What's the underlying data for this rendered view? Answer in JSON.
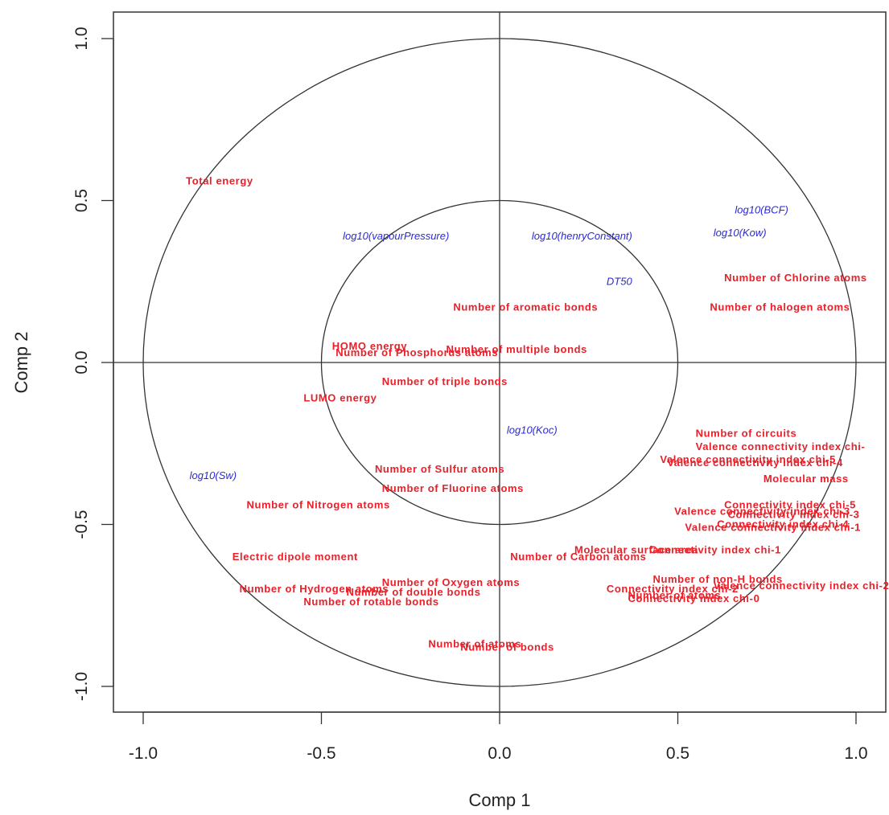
{
  "chart_data": {
    "type": "scatter",
    "xlabel": "Comp 1",
    "ylabel": "Comp 2",
    "xlim": [
      -1.08,
      1.08
    ],
    "ylim": [
      -1.08,
      1.08
    ],
    "xticks": [
      -1.0,
      -0.5,
      0.0,
      0.5,
      1.0
    ],
    "yticks": [
      -1.0,
      -0.5,
      0.0,
      0.5,
      1.0
    ],
    "xtick_labels": [
      "-1.0",
      "-0.5",
      "0.0",
      "0.5",
      "1.0"
    ],
    "ytick_labels": [
      "-1.0",
      "-0.5",
      "0.0",
      "0.5",
      "1.0"
    ],
    "circle_radii": [
      0.5,
      1.0
    ],
    "reference_lines": {
      "x": 0,
      "y": 0
    },
    "grid": false,
    "colors": {
      "descriptor": "#e8202a",
      "response": "#2a2ad6"
    },
    "points": [
      {
        "label": "Total energy",
        "x": -0.88,
        "y": 0.56,
        "group": "descriptor"
      },
      {
        "label": "log10(vapourPressure)",
        "x": -0.44,
        "y": 0.39,
        "group": "response"
      },
      {
        "label": "log10(henryConstant)",
        "x": 0.09,
        "y": 0.39,
        "group": "response"
      },
      {
        "label": "log10(BCF)",
        "x": 0.66,
        "y": 0.47,
        "group": "response"
      },
      {
        "label": "log10(Kow)",
        "x": 0.6,
        "y": 0.4,
        "group": "response"
      },
      {
        "label": "DT50",
        "x": 0.3,
        "y": 0.25,
        "group": "response"
      },
      {
        "label": "Number of Chlorine atoms",
        "x": 0.63,
        "y": 0.26,
        "group": "descriptor"
      },
      {
        "label": "Number of halogen atoms",
        "x": 0.59,
        "y": 0.17,
        "group": "descriptor"
      },
      {
        "label": "Number of aromatic bonds",
        "x": -0.13,
        "y": 0.17,
        "group": "descriptor"
      },
      {
        "label": "HOMO energy",
        "x": -0.47,
        "y": 0.05,
        "group": "descriptor"
      },
      {
        "label": "Number of Phosphorus atoms",
        "x": -0.46,
        "y": 0.03,
        "group": "descriptor"
      },
      {
        "label": "Number of multiple bonds",
        "x": -0.15,
        "y": 0.04,
        "group": "descriptor"
      },
      {
        "label": "Number of triple bonds",
        "x": -0.33,
        "y": -0.06,
        "group": "descriptor"
      },
      {
        "label": "LUMO energy",
        "x": -0.55,
        "y": -0.11,
        "group": "descriptor"
      },
      {
        "label": "log10(Koc)",
        "x": 0.02,
        "y": -0.21,
        "group": "response"
      },
      {
        "label": "Number of circuits",
        "x": 0.55,
        "y": -0.22,
        "group": "descriptor"
      },
      {
        "label": "Valence connectivity index chi-",
        "x": 0.55,
        "y": -0.26,
        "group": "descriptor"
      },
      {
        "label": "Valence connectivity index chi-5",
        "x": 0.45,
        "y": -0.3,
        "group": "descriptor"
      },
      {
        "label": "Valence connectivity index chi-4",
        "x": 0.47,
        "y": -0.31,
        "group": "descriptor"
      },
      {
        "label": "Molecular mass",
        "x": 0.74,
        "y": -0.36,
        "group": "descriptor"
      },
      {
        "label": "log10(Sw)",
        "x": -0.87,
        "y": -0.35,
        "group": "response"
      },
      {
        "label": "Number of Sulfur atoms",
        "x": -0.35,
        "y": -0.33,
        "group": "descriptor"
      },
      {
        "label": "Number of Fluorine atoms",
        "x": -0.33,
        "y": -0.39,
        "group": "descriptor"
      },
      {
        "label": "Number of Nitrogen atoms",
        "x": -0.71,
        "y": -0.44,
        "group": "descriptor"
      },
      {
        "label": "Connectivity index chi-5",
        "x": 0.63,
        "y": -0.44,
        "group": "descriptor"
      },
      {
        "label": "Valence connectivity index chi-3",
        "x": 0.49,
        "y": -0.46,
        "group": "descriptor"
      },
      {
        "label": "Connectivity index chi-3",
        "x": 0.64,
        "y": -0.47,
        "group": "descriptor"
      },
      {
        "label": "Connectivity index chi-4",
        "x": 0.61,
        "y": -0.5,
        "group": "descriptor"
      },
      {
        "label": "Valence connectivity index chi-1",
        "x": 0.52,
        "y": -0.51,
        "group": "descriptor"
      },
      {
        "label": "Electric dipole moment",
        "x": -0.75,
        "y": -0.6,
        "group": "descriptor"
      },
      {
        "label": "Molecular surface area",
        "x": 0.21,
        "y": -0.58,
        "group": "descriptor"
      },
      {
        "label": "Connectivity index chi-1",
        "x": 0.42,
        "y": -0.58,
        "group": "descriptor"
      },
      {
        "label": "Number of Carbon atoms",
        "x": 0.03,
        "y": -0.6,
        "group": "descriptor"
      },
      {
        "label": "Number of Oxygen atoms",
        "x": -0.33,
        "y": -0.68,
        "group": "descriptor"
      },
      {
        "label": "Number of Hydrogen atoms",
        "x": -0.73,
        "y": -0.7,
        "group": "descriptor"
      },
      {
        "label": "Number of double bonds",
        "x": -0.43,
        "y": -0.71,
        "group": "descriptor"
      },
      {
        "label": "Number of rotable bonds",
        "x": -0.55,
        "y": -0.74,
        "group": "descriptor"
      },
      {
        "label": "Number of non-H bonds",
        "x": 0.43,
        "y": -0.67,
        "group": "descriptor"
      },
      {
        "label": "Valence connectivity index chi-2",
        "x": 0.6,
        "y": -0.69,
        "group": "descriptor"
      },
      {
        "label": "Connectivity index chi-2",
        "x": 0.3,
        "y": -0.7,
        "group": "descriptor"
      },
      {
        "label": "Number of atoms",
        "x": 0.36,
        "y": -0.72,
        "group": "descriptor"
      },
      {
        "label": "Connectivity index chi-0",
        "x": 0.36,
        "y": -0.73,
        "group": "descriptor"
      },
      {
        "label": "Number of atoms",
        "x": -0.2,
        "y": -0.87,
        "group": "descriptor"
      },
      {
        "label": "Number of bonds",
        "x": -0.11,
        "y": -0.88,
        "group": "descriptor"
      }
    ]
  }
}
